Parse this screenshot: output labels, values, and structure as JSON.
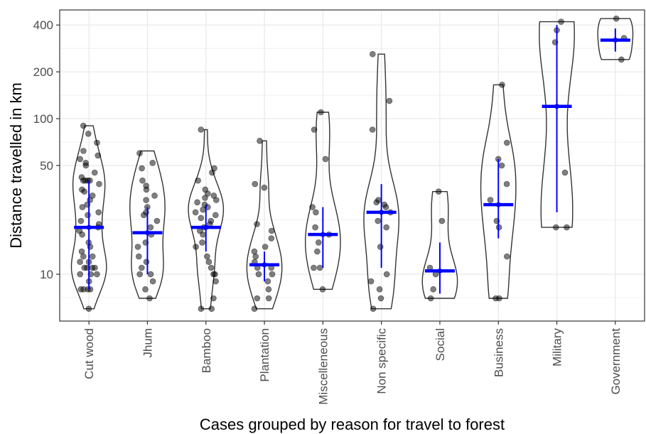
{
  "chart_data": {
    "type": "violin",
    "xlabel": "Cases grouped by reason for travel to forest",
    "ylabel": "Distance travelled in km",
    "y_scale": "log",
    "ylim": [
      5,
      500
    ],
    "y_ticks": [
      10,
      50,
      100,
      200,
      400
    ],
    "y_tick_labels": [
      "10",
      "50",
      "100",
      "200",
      "400"
    ],
    "grid": true,
    "categories": [
      "Cut wood",
      "Jhum",
      "Bamboo",
      "Plantation",
      "Miscelleneous",
      "Non specific",
      "Social",
      "Business",
      "Military",
      "Government"
    ],
    "groups": [
      {
        "name": "Cut wood",
        "mean": 20,
        "ci": [
          8,
          40
        ],
        "range": [
          6,
          90
        ],
        "points": [
          6,
          8,
          8,
          8,
          8,
          9,
          10,
          10,
          10,
          11,
          11,
          11,
          11,
          12,
          12,
          13,
          13,
          14,
          15,
          16,
          18,
          19,
          20,
          21,
          22,
          24,
          25,
          27,
          28,
          30,
          32,
          34,
          35,
          38,
          40,
          40,
          40,
          40,
          42,
          45,
          50,
          52,
          55,
          58,
          62,
          70,
          80,
          90
        ]
      },
      {
        "name": "Jhum",
        "mean": 18.5,
        "ci": [
          10,
          27
        ],
        "range": [
          7,
          62
        ],
        "points": [
          7,
          8,
          9,
          10,
          10,
          11,
          12,
          13,
          15,
          16,
          18,
          20,
          22,
          24,
          25,
          27,
          30,
          32,
          35,
          37,
          40,
          48,
          52,
          60
        ]
      },
      {
        "name": "Bamboo",
        "mean": 20,
        "ci": [
          14,
          28
        ],
        "range": [
          6,
          85
        ],
        "points": [
          6,
          6,
          7,
          9,
          10,
          10,
          11,
          12,
          13,
          15,
          16,
          18,
          19,
          20,
          21,
          22,
          23,
          24,
          25,
          26,
          27,
          28,
          29,
          30,
          31,
          32,
          33,
          35,
          40,
          45,
          48,
          85
        ]
      },
      {
        "name": "Plantation",
        "mean": 11.5,
        "ci": [
          9,
          14
        ],
        "range": [
          6,
          72
        ],
        "points": [
          6,
          7,
          7,
          8,
          9,
          10,
          10,
          11,
          11,
          12,
          13,
          14,
          15,
          17,
          19,
          21,
          36,
          38,
          72
        ]
      },
      {
        "name": "Miscelleneous",
        "mean": 18,
        "ci": [
          11,
          27
        ],
        "range": [
          8,
          110
        ],
        "points": [
          8,
          11,
          11,
          14,
          16,
          18,
          20,
          25,
          27,
          55,
          85,
          110
        ]
      },
      {
        "name": "Non specific",
        "mean": 25,
        "ci": [
          11,
          38
        ],
        "range": [
          6,
          260
        ],
        "points": [
          6,
          7,
          8,
          9,
          10,
          15,
          20,
          22,
          25,
          27,
          28,
          29,
          30,
          85,
          130,
          260
        ]
      },
      {
        "name": "Social",
        "mean": 10.5,
        "ci": [
          7.5,
          16
        ],
        "range": [
          7,
          34
        ],
        "points": [
          7,
          8,
          10,
          11,
          22,
          34
        ]
      },
      {
        "name": "Business",
        "mean": 28,
        "ci": [
          17,
          55
        ],
        "range": [
          7,
          165
        ],
        "points": [
          7,
          7,
          13,
          20,
          22,
          30,
          38,
          50,
          55,
          70,
          165
        ]
      },
      {
        "name": "Military",
        "mean": 120,
        "ci": [
          25,
          400
        ],
        "range": [
          20,
          420
        ],
        "points": [
          20,
          20,
          45,
          310,
          370,
          420
        ]
      },
      {
        "name": "Government",
        "mean": 320,
        "ci": [
          270,
          380
        ],
        "range": [
          240,
          440
        ],
        "points": [
          240,
          330,
          440
        ]
      }
    ],
    "colors": {
      "violin_stroke": "#333333",
      "point": "#000000",
      "summary": "#0000ff",
      "grid": "#ebebeb",
      "panel_border": "#333333"
    }
  }
}
